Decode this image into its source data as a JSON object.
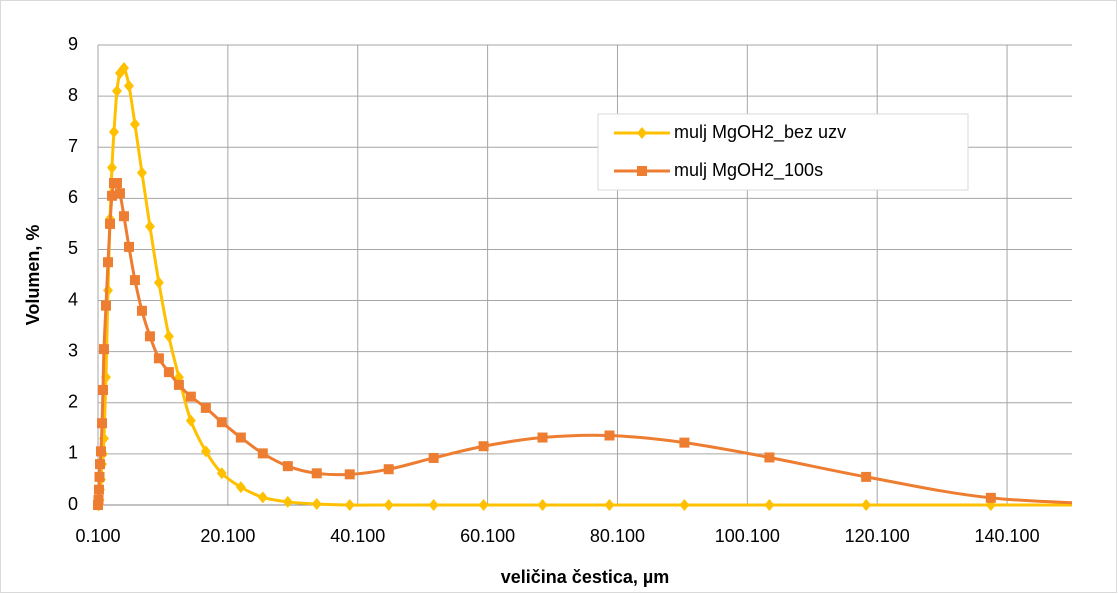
{
  "chart_data": {
    "type": "line",
    "x_label": "veličina čestica, µm",
    "y_label": "Volumen, %",
    "x": [
      0.1,
      0.18,
      0.25,
      0.33,
      0.41,
      0.56,
      0.72,
      0.87,
      1.02,
      1.33,
      1.64,
      1.95,
      2.25,
      2.56,
      3.02,
      3.48,
      4.1,
      4.87,
      5.79,
      6.87,
      8.1,
      9.48,
      11.02,
      12.56,
      14.4,
      16.71,
      19.17,
      22.1,
      25.48,
      29.33,
      33.79,
      38.87,
      44.87,
      51.79,
      59.48,
      68.56,
      78.87,
      90.41,
      103.5,
      118.4,
      137.6,
      160
    ],
    "series": [
      {
        "name": "mulj MgOH2_bez uzv",
        "color": "#ffc000",
        "marker": "diamond",
        "values": [
          0,
          0,
          0,
          0.1,
          0.3,
          0.5,
          0.8,
          1.0,
          1.3,
          2.5,
          4.2,
          5.6,
          6.6,
          7.3,
          8.1,
          8.45,
          8.55,
          8.2,
          7.45,
          6.5,
          5.45,
          4.35,
          3.3,
          2.5,
          1.65,
          1.05,
          0.62,
          0.35,
          0.15,
          0.06,
          0.02,
          0,
          0,
          0,
          0,
          0,
          0,
          0,
          0,
          0,
          0,
          0
        ]
      },
      {
        "name": "mulj MgOH2_100s",
        "color": "#ed7d31",
        "marker": "square",
        "values": [
          0,
          0.1,
          0.3,
          0.55,
          0.8,
          1.05,
          1.6,
          2.25,
          3.05,
          3.9,
          4.75,
          5.5,
          6.05,
          6.3,
          6.3,
          6.1,
          5.65,
          5.05,
          4.4,
          3.8,
          3.3,
          2.87,
          2.6,
          2.35,
          2.12,
          1.9,
          1.62,
          1.32,
          1.01,
          0.76,
          0.62,
          0.6,
          0.7,
          0.92,
          1.15,
          1.32,
          1.36,
          1.22,
          0.93,
          0.55,
          0.14,
          0
        ]
      }
    ],
    "xlim": [
      0.1,
      150.1
    ],
    "xticks": [
      {
        "value": 0.1,
        "label": "0.100"
      },
      {
        "value": 20.1,
        "label": "20.100"
      },
      {
        "value": 40.1,
        "label": "40.100"
      },
      {
        "value": 60.1,
        "label": "60.100"
      },
      {
        "value": 80.1,
        "label": "80.100"
      },
      {
        "value": 100.1,
        "label": "100.100"
      },
      {
        "value": 120.1,
        "label": "120.100"
      },
      {
        "value": 140.1,
        "label": "140.100"
      }
    ],
    "ylim": [
      0,
      9
    ],
    "yticks": [
      0,
      1,
      2,
      3,
      4,
      5,
      6,
      7,
      8,
      9
    ],
    "grid": true,
    "legend_position": "upper right"
  }
}
